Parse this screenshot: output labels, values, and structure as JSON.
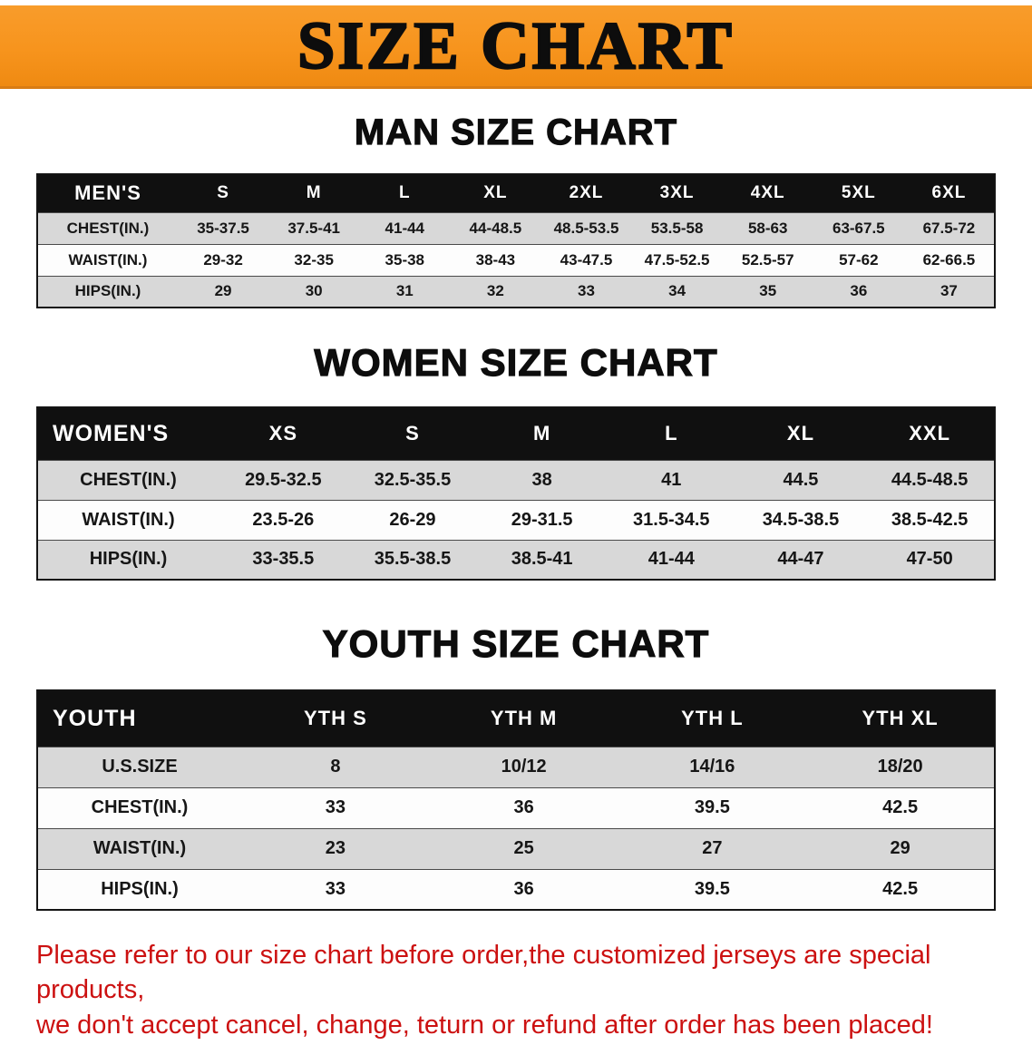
{
  "banner": {
    "title": "SIZE CHART",
    "bg_color": "#F7941D"
  },
  "sections": [
    {
      "heading": "MAN SIZE CHART",
      "table": {
        "header": [
          "MEN'S",
          "S",
          "M",
          "L",
          "XL",
          "2XL",
          "3XL",
          "4XL",
          "5XL",
          "6XL"
        ],
        "rows": [
          [
            "CHEST(IN.)",
            "35-37.5",
            "37.5-41",
            "41-44",
            "44-48.5",
            "48.5-53.5",
            "53.5-58",
            "58-63",
            "63-67.5",
            "67.5-72"
          ],
          [
            "WAIST(IN.)",
            "29-32",
            "32-35",
            "35-38",
            "38-43",
            "43-47.5",
            "47.5-52.5",
            "52.5-57",
            "57-62",
            "62-66.5"
          ],
          [
            "HIPS(IN.)",
            "29",
            "30",
            "31",
            "32",
            "33",
            "34",
            "35",
            "36",
            "37"
          ]
        ]
      }
    },
    {
      "heading": "WOMEN SIZE CHART",
      "table": {
        "header": [
          "WOMEN'S",
          "XS",
          "S",
          "M",
          "L",
          "XL",
          "XXL"
        ],
        "rows": [
          [
            "CHEST(IN.)",
            "29.5-32.5",
            "32.5-35.5",
            "38",
            "41",
            "44.5",
            "44.5-48.5"
          ],
          [
            "WAIST(IN.)",
            "23.5-26",
            "26-29",
            "29-31.5",
            "31.5-34.5",
            "34.5-38.5",
            "38.5-42.5"
          ],
          [
            "HIPS(IN.)",
            "33-35.5",
            "35.5-38.5",
            "38.5-41",
            "41-44",
            "44-47",
            "47-50"
          ]
        ]
      }
    },
    {
      "heading": "YOUTH SIZE CHART",
      "table": {
        "header": [
          "YOUTH",
          "YTH S",
          "YTH M",
          "YTH L",
          "YTH XL"
        ],
        "rows": [
          [
            "U.S.SIZE",
            "8",
            "10/12",
            "14/16",
            "18/20"
          ],
          [
            "CHEST(IN.)",
            "33",
            "36",
            "39.5",
            "42.5"
          ],
          [
            "WAIST(IN.)",
            "23",
            "25",
            "27",
            "29"
          ],
          [
            "HIPS(IN.)",
            "33",
            "36",
            "39.5",
            "42.5"
          ]
        ]
      }
    }
  ],
  "disclaimer": {
    "line1": "Please refer to our size chart before order,the customized jerseys are special products,",
    "line2": "we don't accept cancel, change, teturn or refund after order has been placed!",
    "color": "#cc1111"
  }
}
